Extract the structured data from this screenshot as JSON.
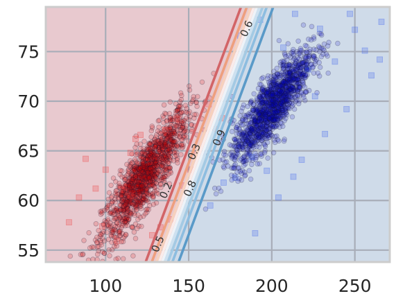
{
  "chart_data": {
    "type": "scatter",
    "title": "",
    "xlabel": "",
    "ylabel": "",
    "xlim": [
      64,
      271
    ],
    "ylim": [
      53.8,
      79.5
    ],
    "grid": true,
    "xticks": [
      100,
      150,
      200,
      250
    ],
    "yticks": [
      55,
      60,
      65,
      70,
      75
    ],
    "xtick_labels": [
      "100",
      "150",
      "200",
      "250"
    ],
    "ytick_labels": [
      "55",
      "60",
      "65",
      "70",
      "75"
    ],
    "regions": [
      {
        "name": "red-class-region",
        "color": "#e8c9cf"
      },
      {
        "name": "blue-class-region",
        "color": "#cfdbe9"
      }
    ],
    "series": [
      {
        "name": "",
        "marker": "circle",
        "color": "#dd0000",
        "cluster": {
          "center": [
            124,
            62.5
          ],
          "x_std": 13,
          "slope": 0.22,
          "y_resid_std": 1.6,
          "x_range": [
            70,
            175
          ],
          "n": 1400
        }
      },
      {
        "name": "",
        "marker": "circle",
        "color": "#0000cc",
        "cluster": {
          "center": [
            200,
            69.5
          ],
          "x_std": 12,
          "slope": 0.2,
          "y_resid_std": 1.6,
          "x_range": [
            148,
            272
          ],
          "n": 1400
        }
      }
    ],
    "outliers": [
      {
        "marker": "square",
        "color": "#ee4444",
        "points": [
          [
            121,
            66.6
          ],
          [
            136,
            67.1
          ],
          [
            143,
            68.2
          ],
          [
            162,
            69.7
          ],
          [
            118,
            66.2
          ],
          [
            111,
            61.3
          ],
          [
            115,
            60.5
          ],
          [
            133,
            57.3
          ],
          [
            128,
            56.5
          ],
          [
            139,
            58.1
          ],
          [
            107,
            55.9
          ],
          [
            98,
            57.4
          ],
          [
            84,
            60.3
          ],
          [
            94,
            61.2
          ],
          [
            100,
            63.1
          ],
          [
            115,
            64.8
          ],
          [
            151,
            63.1
          ],
          [
            146,
            61.5
          ],
          [
            166,
            67.2
          ],
          [
            170,
            68.3
          ],
          [
            78,
            57.8
          ],
          [
            88,
            64.2
          ]
        ]
      },
      {
        "marker": "square",
        "color": "#4466ee",
        "points": [
          [
            193,
            78.2
          ],
          [
            214,
            78.8
          ],
          [
            229,
            77.3
          ],
          [
            247,
            78.8
          ],
          [
            250,
            77.2
          ],
          [
            266,
            78.0
          ],
          [
            238,
            74.0
          ],
          [
            256,
            75.1
          ],
          [
            265,
            74.2
          ],
          [
            207,
            75.4
          ],
          [
            222,
            73.2
          ],
          [
            181,
            76.6
          ],
          [
            188,
            64.4
          ],
          [
            178,
            62.3
          ],
          [
            197,
            63.0
          ],
          [
            171,
            61.8
          ],
          [
            163,
            59.5
          ],
          [
            204,
            60.3
          ],
          [
            213,
            62.4
          ],
          [
            218,
            64.1
          ],
          [
            232,
            66.7
          ],
          [
            245,
            69.2
          ],
          [
            260,
            72.6
          ],
          [
            190,
            56.7
          ],
          [
            226,
            70.5
          ]
        ]
      }
    ],
    "contour_lines": [
      {
        "level": "0.1",
        "x": [
          124.1,
          181.5
        ],
        "color": "#d26467"
      },
      {
        "level": "0.2",
        "x": [
          127.8,
          185.0
        ],
        "color": "#ee9f7e"
      },
      {
        "level": "0.3",
        "x": [
          130.5,
          187.5
        ],
        "color": "#f7d1bd"
      },
      {
        "level": "0.4",
        "x": [
          132.3,
          189.3
        ],
        "color": "#faecea"
      },
      {
        "level": "0.5",
        "x": [
          134.0,
          191.0
        ],
        "color": "#eef3f8"
      },
      {
        "level": "0.6",
        "x": [
          135.7,
          192.7
        ],
        "color": "#cde1f0"
      },
      {
        "level": "0.7",
        "x": [
          137.5,
          194.5
        ],
        "color": "#a3cae4"
      },
      {
        "level": "0.8",
        "x": [
          140.2,
          197.0
        ],
        "color": "#8dbde0"
      },
      {
        "level": "0.9",
        "x": [
          143.9,
          200.9
        ],
        "color": "#5a9ac8"
      }
    ],
    "contour_labels": [
      {
        "text": "0.6",
        "x": 185.0,
        "y": 77.3,
        "angle": -66
      },
      {
        "text": "0.3",
        "x": 153.5,
        "y": 64.9,
        "angle": -66
      },
      {
        "text": "0.9",
        "x": 168.5,
        "y": 66.3,
        "angle": -66
      },
      {
        "text": "0.2",
        "x": 136.5,
        "y": 61.0,
        "angle": -66
      },
      {
        "text": "0.8",
        "x": 151.0,
        "y": 61.2,
        "angle": -66
      },
      {
        "text": "0.5",
        "x": 131.7,
        "y": 55.6,
        "angle": -66
      }
    ],
    "frame_color": "#cccccc",
    "grid_color": "#a8adb8"
  }
}
